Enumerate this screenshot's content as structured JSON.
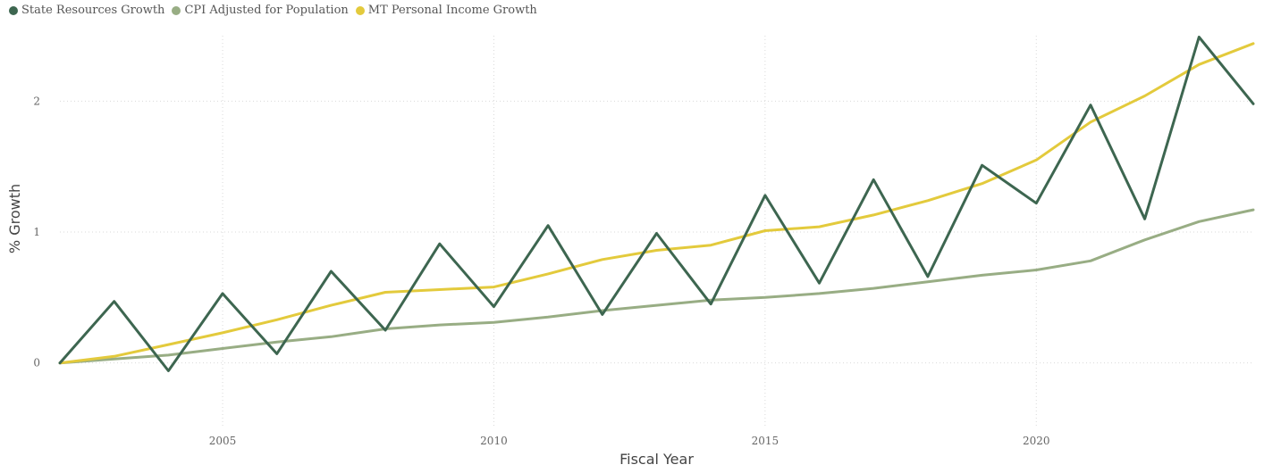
{
  "chart_data": {
    "type": "line",
    "title": "",
    "xlabel": "Fiscal Year",
    "ylabel": "% Growth",
    "xlim": [
      2002,
      2024
    ],
    "ylim": [
      -0.5,
      2.5
    ],
    "x_ticks": [
      2005,
      2010,
      2015,
      2020
    ],
    "y_ticks": [
      0,
      1,
      2
    ],
    "grid": true,
    "legend_position": "top-left",
    "x": [
      2002,
      2003,
      2004,
      2005,
      2006,
      2007,
      2008,
      2009,
      2010,
      2011,
      2012,
      2013,
      2014,
      2015,
      2016,
      2017,
      2018,
      2019,
      2020,
      2021,
      2022,
      2023,
      2024
    ],
    "series": [
      {
        "name": "State Resources Growth",
        "color": "#3d6650",
        "values": [
          0.0,
          0.47,
          -0.06,
          0.53,
          0.07,
          0.7,
          0.25,
          0.91,
          0.43,
          1.05,
          0.37,
          0.99,
          0.45,
          1.28,
          0.61,
          1.4,
          0.66,
          1.51,
          1.22,
          1.97,
          1.1,
          2.49,
          1.98
        ]
      },
      {
        "name": "CPI Adjusted for Population",
        "color": "#98ad84",
        "values": [
          0.0,
          0.03,
          0.06,
          0.11,
          0.16,
          0.2,
          0.26,
          0.29,
          0.31,
          0.35,
          0.4,
          0.44,
          0.48,
          0.5,
          0.53,
          0.57,
          0.62,
          0.67,
          0.71,
          0.78,
          0.94,
          1.08,
          1.17
        ]
      },
      {
        "name": "MT Personal Income Growth",
        "color": "#e3ca3c",
        "values": [
          0.0,
          0.05,
          0.14,
          0.23,
          0.33,
          0.44,
          0.54,
          0.56,
          0.58,
          0.68,
          0.79,
          0.86,
          0.9,
          1.01,
          1.04,
          1.13,
          1.24,
          1.37,
          1.55,
          1.84,
          2.04,
          2.28,
          2.44
        ]
      }
    ]
  }
}
